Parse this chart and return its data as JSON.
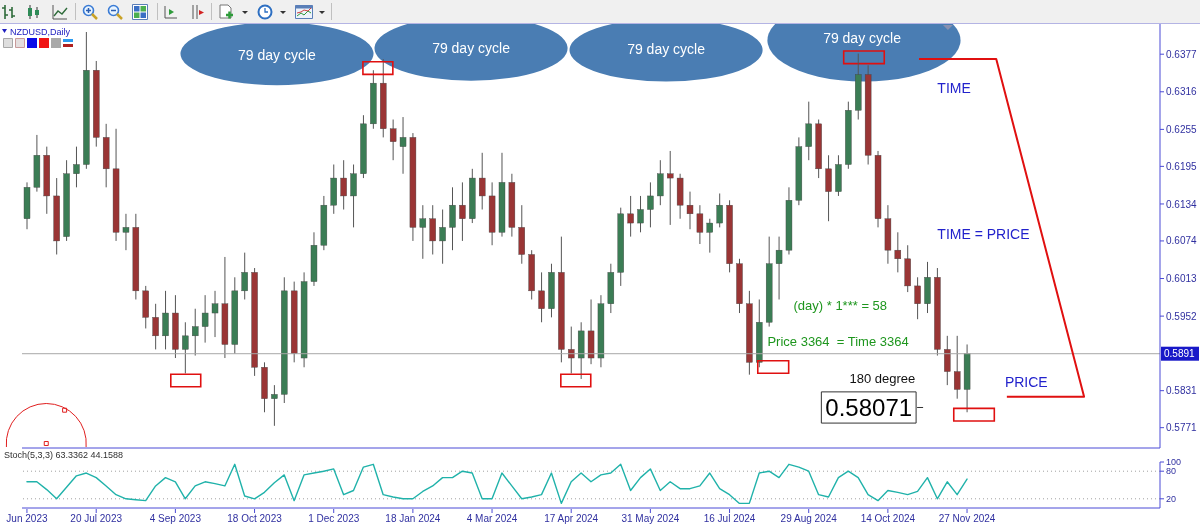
{
  "chart_data": [
    {
      "type": "candlestick",
      "title": "NZDUSD,Daily",
      "categories": [
        "Jun 2023",
        null,
        null,
        null,
        null,
        null,
        null,
        "20 Jul 2023",
        null,
        null,
        null,
        null,
        null,
        null,
        null,
        "4 Sep 2023",
        null,
        null,
        null,
        null,
        null,
        null,
        null,
        "18 Oct 2023",
        null,
        null,
        null,
        null,
        null,
        null,
        null,
        "1 Dec 2023",
        null,
        null,
        null,
        null,
        null,
        null,
        null,
        "18 Jan 2024",
        null,
        null,
        null,
        null,
        null,
        null,
        null,
        "4 Mar 2024",
        null,
        null,
        null,
        null,
        null,
        null,
        null,
        "17 Apr 2024",
        null,
        null,
        null,
        null,
        null,
        null,
        null,
        "31 May 2024",
        null,
        null,
        null,
        null,
        null,
        null,
        null,
        "16 Jul 2024",
        null,
        null,
        null,
        null,
        null,
        null,
        null,
        "29 Aug 2024",
        null,
        null,
        null,
        null,
        null,
        null,
        null,
        "14 Oct 2024",
        null,
        null,
        null,
        null,
        null,
        null,
        null,
        "27 Nov 2024",
        null,
        null,
        null,
        null,
        null,
        null,
        null,
        null,
        null,
        null,
        null,
        null,
        null,
        null,
        null,
        null,
        null,
        null,
        null
      ],
      "ohlc": [
        [
          0.611,
          0.6169,
          0.6093,
          0.6161
        ],
        [
          0.6161,
          0.6246,
          0.6154,
          0.6213
        ],
        [
          0.6213,
          0.6227,
          0.6118,
          0.6147
        ],
        [
          0.6147,
          0.6176,
          0.6052,
          0.6074
        ],
        [
          0.6081,
          0.6205,
          0.6074,
          0.6183
        ],
        [
          0.6183,
          0.6227,
          0.6161,
          0.6198
        ],
        [
          0.6198,
          0.6413,
          0.6191,
          0.6351
        ],
        [
          0.6351,
          0.6366,
          0.6227,
          0.6242
        ],
        [
          0.6242,
          0.6264,
          0.6161,
          0.6191
        ],
        [
          0.6191,
          0.6256,
          0.6074,
          0.6088
        ],
        [
          0.6088,
          0.6118,
          0.6059,
          0.6096
        ],
        [
          0.6096,
          0.6118,
          0.5979,
          0.5993
        ],
        [
          0.5993,
          0.6001,
          0.5932,
          0.595
        ],
        [
          0.595,
          0.5972,
          0.5898,
          0.592
        ],
        [
          0.592,
          0.5993,
          0.5898,
          0.5957
        ],
        [
          0.5957,
          0.5986,
          0.5884,
          0.5898
        ],
        [
          0.5898,
          0.5942,
          0.5859,
          0.592
        ],
        [
          0.592,
          0.5964,
          0.5888,
          0.5935
        ],
        [
          0.5935,
          0.5986,
          0.5909,
          0.5957
        ],
        [
          0.5957,
          0.5993,
          0.5918,
          0.5972
        ],
        [
          0.5972,
          0.6048,
          0.5884,
          0.5906
        ],
        [
          0.5906,
          0.6015,
          0.5891,
          0.5993
        ],
        [
          0.5993,
          0.6055,
          0.5979,
          0.6023
        ],
        [
          0.6023,
          0.603,
          0.5855,
          0.5869
        ],
        [
          0.5869,
          0.5877,
          0.5796,
          0.5818
        ],
        [
          0.5818,
          0.584,
          0.5774,
          0.5825
        ],
        [
          0.5825,
          0.6015,
          0.5811,
          0.5993
        ],
        [
          0.5993,
          0.6008,
          0.5877,
          0.5891
        ],
        [
          0.5884,
          0.6023,
          0.5869,
          0.6008
        ],
        [
          0.6008,
          0.6088,
          0.6001,
          0.6067
        ],
        [
          0.6067,
          0.6147,
          0.6059,
          0.6132
        ],
        [
          0.6132,
          0.6198,
          0.6118,
          0.6176
        ],
        [
          0.6176,
          0.6205,
          0.6125,
          0.6147
        ],
        [
          0.6147,
          0.6198,
          0.6096,
          0.6183
        ],
        [
          0.6183,
          0.6278,
          0.6176,
          0.6264
        ],
        [
          0.6264,
          0.6351,
          0.6256,
          0.633
        ],
        [
          0.633,
          0.6369,
          0.6242,
          0.6256
        ],
        [
          0.6256,
          0.6271,
          0.6205,
          0.6235
        ],
        [
          0.6227,
          0.6275,
          0.6183,
          0.6242
        ],
        [
          0.6242,
          0.6249,
          0.6074,
          0.6096
        ],
        [
          0.6096,
          0.6132,
          0.6045,
          0.611
        ],
        [
          0.611,
          0.6132,
          0.6052,
          0.6074
        ],
        [
          0.6074,
          0.6125,
          0.6037,
          0.6096
        ],
        [
          0.6096,
          0.6161,
          0.6059,
          0.6132
        ],
        [
          0.6132,
          0.6169,
          0.6074,
          0.611
        ],
        [
          0.611,
          0.6191,
          0.6103,
          0.6176
        ],
        [
          0.6176,
          0.6217,
          0.6125,
          0.6147
        ],
        [
          0.6147,
          0.6169,
          0.6067,
          0.6088
        ],
        [
          0.6088,
          0.6217,
          0.6081,
          0.6169
        ],
        [
          0.6169,
          0.6183,
          0.6081,
          0.6096
        ],
        [
          0.6096,
          0.6132,
          0.6037,
          0.6052
        ],
        [
          0.6052,
          0.6059,
          0.5979,
          0.5993
        ],
        [
          0.5993,
          0.6023,
          0.5942,
          0.5964
        ],
        [
          0.5964,
          0.6037,
          0.595,
          0.6023
        ],
        [
          0.6023,
          0.6081,
          0.5877,
          0.5898
        ],
        [
          0.5898,
          0.5935,
          0.5859,
          0.5884
        ],
        [
          0.5884,
          0.5942,
          0.585,
          0.5928
        ],
        [
          0.5928,
          0.5979,
          0.5874,
          0.5884
        ],
        [
          0.5884,
          0.5986,
          0.5869,
          0.5972
        ],
        [
          0.5972,
          0.6037,
          0.5957,
          0.6023
        ],
        [
          0.6023,
          0.6128,
          0.6001,
          0.6118
        ],
        [
          0.6118,
          0.6147,
          0.6081,
          0.6103
        ],
        [
          0.6103,
          0.6147,
          0.6088,
          0.6125
        ],
        [
          0.6125,
          0.6169,
          0.6096,
          0.6147
        ],
        [
          0.6147,
          0.6205,
          0.6132,
          0.6183
        ],
        [
          0.6183,
          0.622,
          0.61,
          0.6176
        ],
        [
          0.6176,
          0.6183,
          0.611,
          0.6132
        ],
        [
          0.6132,
          0.6154,
          0.6093,
          0.6118
        ],
        [
          0.6118,
          0.6132,
          0.6069,
          0.6088
        ],
        [
          0.6088,
          0.611,
          0.6055,
          0.6103
        ],
        [
          0.6103,
          0.6151,
          0.6096,
          0.6132
        ],
        [
          0.6132,
          0.614,
          0.6023,
          0.6037
        ],
        [
          0.6037,
          0.6045,
          0.5957,
          0.5972
        ],
        [
          0.5972,
          0.5993,
          0.5857,
          0.5877
        ],
        [
          0.5877,
          0.5979,
          0.5869,
          0.5942
        ],
        [
          0.5942,
          0.6081,
          0.5935,
          0.6037
        ],
        [
          0.6037,
          0.6081,
          0.5979,
          0.6059
        ],
        [
          0.6059,
          0.6161,
          0.6052,
          0.614
        ],
        [
          0.614,
          0.6242,
          0.6132,
          0.6227
        ],
        [
          0.6227,
          0.63,
          0.6205,
          0.6264
        ],
        [
          0.6264,
          0.6271,
          0.6176,
          0.6191
        ],
        [
          0.6191,
          0.6213,
          0.6106,
          0.6154
        ],
        [
          0.6154,
          0.6213,
          0.6147,
          0.6198
        ],
        [
          0.6198,
          0.63,
          0.6191,
          0.6286
        ],
        [
          0.6286,
          0.6378,
          0.6271,
          0.6344
        ],
        [
          0.6344,
          0.6359,
          0.6198,
          0.6213
        ],
        [
          0.6213,
          0.622,
          0.6096,
          0.611
        ],
        [
          0.611,
          0.6132,
          0.6037,
          0.6059
        ],
        [
          0.6059,
          0.6088,
          0.6023,
          0.6045
        ],
        [
          0.6045,
          0.6067,
          0.5991,
          0.6001
        ],
        [
          0.6001,
          0.6015,
          0.5947,
          0.5972
        ],
        [
          0.5972,
          0.604,
          0.5957,
          0.6015
        ],
        [
          0.6015,
          0.603,
          0.5888,
          0.5898
        ],
        [
          0.5898,
          0.592,
          0.584,
          0.5862
        ],
        [
          0.5862,
          0.592,
          0.5818,
          0.5833
        ],
        [
          0.5833,
          0.5906,
          0.5796,
          0.5891
        ],
        null,
        null,
        null,
        null,
        null,
        null,
        null,
        null,
        null,
        null,
        null,
        null,
        null,
        null,
        null,
        null,
        null,
        null,
        null
      ],
      "colors": [
        "#3b7d55",
        "#3b7d55",
        "#9a3535",
        "#9a3535",
        "#3b7d55",
        "#3b7d55",
        "#3b7d55",
        "#9a3535",
        "#9a3535",
        "#9a3535",
        "#3b7d55",
        "#9a3535",
        "#9a3535",
        "#9a3535",
        "#3b7d55",
        "#9a3535",
        "#3b7d55",
        "#3b7d55",
        "#3b7d55",
        "#3b7d55",
        "#9a3535",
        "#3b7d55",
        "#3b7d55",
        "#9a3535",
        "#9a3535",
        "#3b7d55",
        "#3b7d55",
        "#9a3535",
        "#3b7d55",
        "#3b7d55",
        "#3b7d55",
        "#3b7d55",
        "#9a3535",
        "#3b7d55",
        "#3b7d55",
        "#3b7d55",
        "#9a3535",
        "#9a3535",
        "#3b7d55",
        "#9a3535",
        "#3b7d55",
        "#9a3535",
        "#3b7d55",
        "#3b7d55",
        "#9a3535",
        "#3b7d55",
        "#9a3535",
        "#9a3535",
        "#3b7d55",
        "#9a3535",
        "#9a3535",
        "#9a3535",
        "#9a3535",
        "#3b7d55",
        "#9a3535",
        "#9a3535",
        "#3b7d55",
        "#9a3535",
        "#3b7d55",
        "#3b7d55",
        "#3b7d55",
        "#9a3535",
        "#3b7d55",
        "#3b7d55",
        "#3b7d55",
        "#9a3535",
        "#9a3535",
        "#9a3535",
        "#9a3535",
        "#3b7d55",
        "#3b7d55",
        "#9a3535",
        "#9a3535",
        "#9a3535",
        "#3b7d55",
        "#3b7d55",
        "#3b7d55",
        "#3b7d55",
        "#3b7d55",
        "#3b7d55",
        "#9a3535",
        "#9a3535",
        "#3b7d55",
        "#3b7d55",
        "#3b7d55",
        "#9a3535",
        "#9a3535",
        "#9a3535",
        "#9a3535",
        "#9a3535",
        "#9a3535",
        "#3b7d55",
        "#9a3535",
        "#9a3535",
        "#9a3535",
        "#3b7d55",
        null,
        null,
        null,
        null,
        null,
        null,
        null,
        null,
        null,
        null,
        null,
        null,
        null,
        null,
        null,
        null,
        null,
        null,
        null
      ],
      "ylim": [
        0.5738,
        0.6426
      ],
      "yticks": [
        0.5771,
        0.5831,
        0.5952,
        0.6013,
        0.6074,
        0.6134,
        0.6195,
        0.6255,
        0.6316,
        0.6377
      ],
      "ref_lines": [
        {
          "axis": "y",
          "value": 0.5891,
          "label": "0.5891",
          "color": "#a8a8a8"
        }
      ],
      "annotations": [
        "79 day cycle",
        "79 day cycle",
        "79 day cycle",
        "79 day cycle",
        "TIME",
        "TIME = PRICE",
        "PRICE",
        "(day) * 1*** = 58",
        "Price 3364  = Time 3364",
        "180 degree",
        "0.58071"
      ]
    },
    {
      "type": "line",
      "title": "Stoch(5,3,3) 63.3362 44.1588",
      "marker": "none",
      "color": "#20b2aa",
      "tick_labels": "y",
      "categories": [
        null,
        null,
        null,
        null,
        null,
        null,
        null,
        null,
        null,
        null,
        null,
        null,
        null,
        null,
        null,
        null,
        null,
        null,
        null,
        null,
        null,
        null,
        null,
        null,
        null,
        null,
        null,
        null,
        null,
        null,
        null,
        null,
        null,
        null,
        null,
        null,
        null,
        null,
        null,
        null,
        null,
        null,
        null,
        null,
        null,
        null,
        null,
        null,
        null,
        null,
        null,
        null,
        null,
        null,
        null,
        null,
        null,
        null,
        null,
        null,
        null,
        null,
        null,
        null,
        null,
        null,
        null,
        null,
        null,
        null,
        null,
        null,
        null,
        null,
        null,
        null,
        null,
        null,
        null,
        null,
        null,
        null,
        null,
        null,
        null,
        null,
        null,
        null,
        null,
        null,
        null,
        null,
        null,
        null,
        null,
        null,
        null,
        null,
        null,
        null,
        null,
        null,
        null,
        null,
        null,
        null,
        null,
        null,
        null,
        null,
        null,
        null,
        null,
        null,
        null
      ],
      "values": [
        57,
        57,
        40,
        20,
        45,
        70,
        76,
        66,
        48,
        29,
        20,
        18,
        16,
        48,
        66,
        57,
        20,
        48,
        57,
        53,
        48,
        95,
        26,
        20,
        34,
        55,
        72,
        16,
        72,
        76,
        80,
        85,
        29,
        38,
        89,
        95,
        29,
        24,
        20,
        20,
        36,
        48,
        66,
        66,
        80,
        76,
        20,
        20,
        76,
        48,
        20,
        24,
        29,
        76,
        10,
        57,
        76,
        57,
        72,
        76,
        95,
        38,
        66,
        85,
        38,
        57,
        42,
        42,
        48,
        76,
        42,
        29,
        10,
        10,
        76,
        80,
        66,
        95,
        89,
        80,
        29,
        24,
        66,
        80,
        66,
        29,
        16,
        38,
        34,
        29,
        36,
        66,
        20,
        57,
        29,
        63,
        null,
        null,
        null,
        null,
        null,
        null,
        null,
        null,
        null,
        null,
        null,
        null,
        null,
        null,
        null,
        null,
        null,
        null,
        null
      ],
      "ylim": [
        0,
        100
      ],
      "yticks": [
        20,
        80,
        100
      ],
      "ref_lines": [
        {
          "axis": "y",
          "value": 80,
          "line_style": "dotted",
          "color": "#a0a0a0"
        },
        {
          "axis": "y",
          "value": 20,
          "line_style": "dotted",
          "color": "#a0a0a0"
        }
      ]
    }
  ]
}
